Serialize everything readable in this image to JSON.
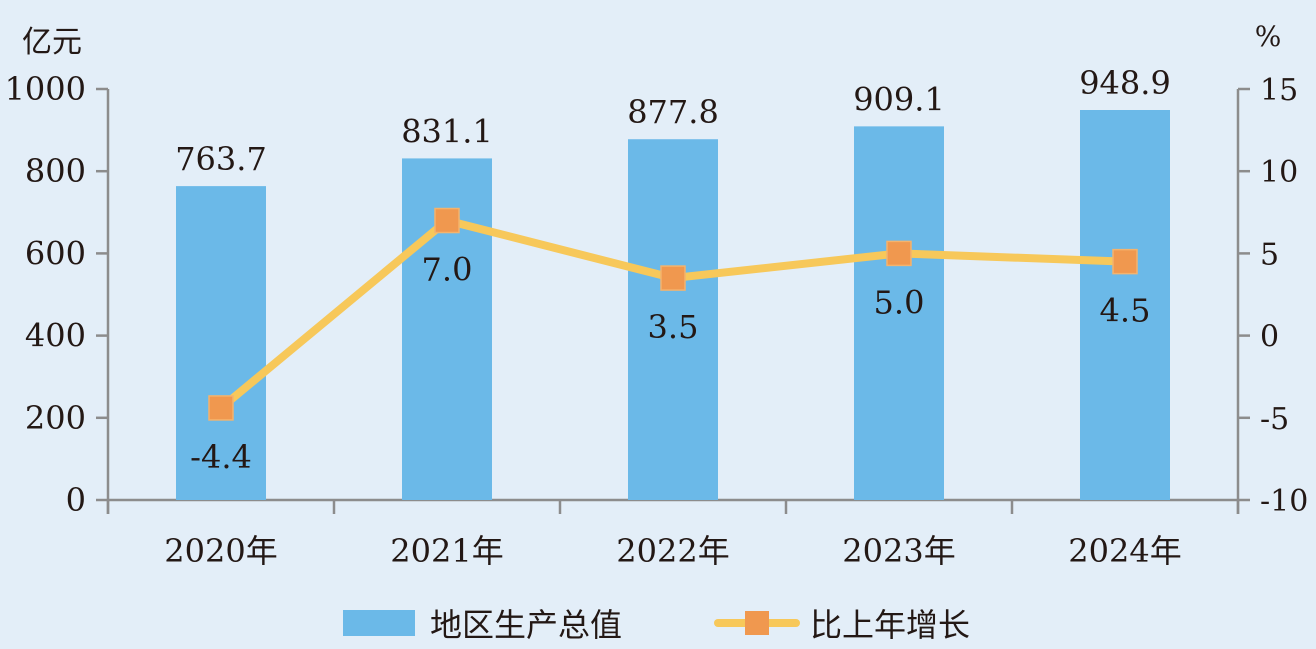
{
  "chart_data": {
    "type": "bar",
    "categories": [
      "2020年",
      "2021年",
      "2022年",
      "2023年",
      "2024年"
    ],
    "series": [
      {
        "name": "地区生产总值",
        "type": "bar",
        "axis": "left",
        "values": [
          763.7,
          831.1,
          877.8,
          909.1,
          948.9
        ],
        "labels": [
          "763.7",
          "831.1",
          "877.8",
          "909.1",
          "948.9"
        ],
        "color": "#6bb9e8"
      },
      {
        "name": "比上年增长",
        "type": "line",
        "axis": "right",
        "values": [
          -4.4,
          7.0,
          3.5,
          5.0,
          4.5
        ],
        "labels": [
          "-4.4",
          "7.0",
          "3.5",
          "5.0",
          "4.5"
        ],
        "color": "#f7c85a",
        "marker_color": "#f0984f"
      }
    ],
    "y_left": {
      "unit": "亿元",
      "range": [
        0,
        1000
      ],
      "ticks": [
        "0",
        "200",
        "400",
        "600",
        "800",
        "1000"
      ]
    },
    "y_right": {
      "unit": "%",
      "range": [
        -10,
        15
      ],
      "ticks": [
        "-10",
        "-5",
        "0",
        "5",
        "10",
        "15"
      ]
    },
    "legend": {
      "position": "bottom"
    },
    "grid": false
  }
}
